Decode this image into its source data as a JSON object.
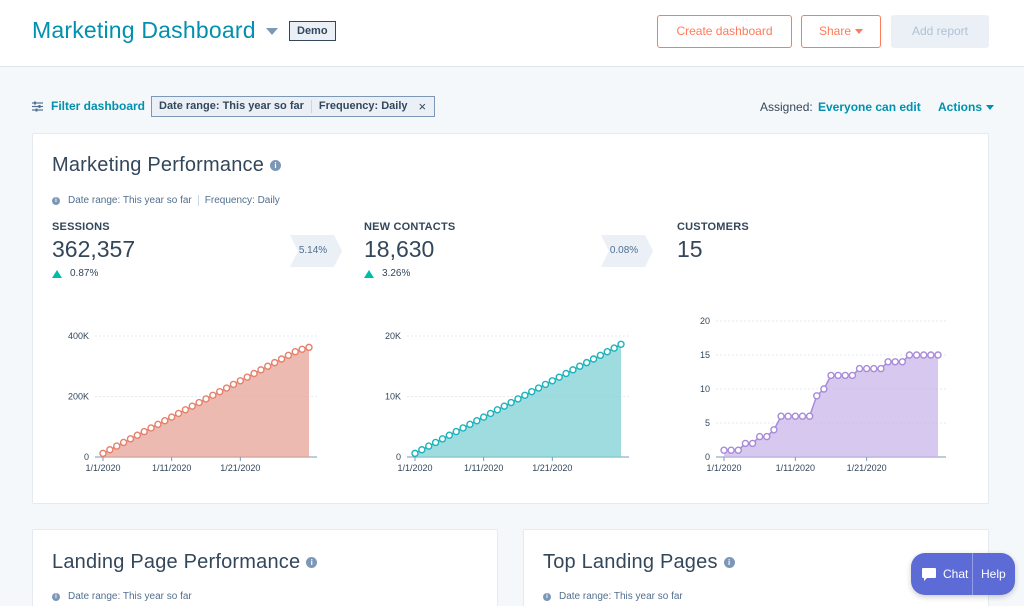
{
  "header": {
    "title": "Marketing Dashboard",
    "badge": "Demo",
    "create_label": "Create dashboard",
    "share_label": "Share",
    "add_report_label": "Add report"
  },
  "filterbar": {
    "filter_label": "Filter dashboard",
    "chip_date": "Date range: This year so far",
    "chip_frequency": "Frequency: Daily",
    "chip_close": "×",
    "assigned_label": "Assigned:",
    "assigned_value": "Everyone can edit",
    "actions_label": "Actions"
  },
  "performance": {
    "title": "Marketing Performance",
    "info": "i",
    "date_range": "Date range: This year so far",
    "frequency": "Frequency: Daily",
    "metrics": [
      {
        "label": "SESSIONS",
        "value": "362,357",
        "change": "0.87%"
      },
      {
        "label": "NEW CONTACTS",
        "value": "18,630",
        "change": "3.26%"
      },
      {
        "label": "CUSTOMERS",
        "value": "15"
      }
    ],
    "conversions": [
      "5.14%",
      "0.08%"
    ]
  },
  "landing_page": {
    "title": "Landing Page Performance",
    "date_range": "Date range: This year so far"
  },
  "top_landing": {
    "title": "Top Landing Pages",
    "date_range": "Date range: This year so far"
  },
  "chat": {
    "chat_label": "Chat",
    "help_label": "Help"
  },
  "chart_data": [
    {
      "type": "area",
      "title": "",
      "color": "#e5a396",
      "x_ticks": [
        "1/1/2020",
        "1/11/2020",
        "1/21/2020"
      ],
      "y_ticks": [
        "0",
        "200K",
        "400K"
      ],
      "ylim": [
        0,
        400000
      ],
      "x": [
        1,
        2,
        3,
        4,
        5,
        6,
        7,
        8,
        9,
        10,
        11,
        12,
        13,
        14,
        15,
        16,
        17,
        18,
        19,
        20,
        21,
        22,
        23,
        24,
        25,
        26,
        27,
        28,
        29,
        30,
        31
      ],
      "values": [
        12000,
        24000,
        36000,
        48000,
        60000,
        72000,
        84000,
        96000,
        108000,
        120000,
        132000,
        144000,
        156000,
        168000,
        180000,
        192000,
        204000,
        216000,
        228000,
        240000,
        252000,
        264000,
        276000,
        288000,
        300000,
        312000,
        324000,
        336000,
        348000,
        356000,
        362357
      ]
    },
    {
      "type": "area",
      "title": "",
      "color": "#7fd0d4",
      "x_ticks": [
        "1/1/2020",
        "1/11/2020",
        "1/21/2020"
      ],
      "y_ticks": [
        "0",
        "10K",
        "20K"
      ],
      "ylim": [
        0,
        20000
      ],
      "x": [
        1,
        2,
        3,
        4,
        5,
        6,
        7,
        8,
        9,
        10,
        11,
        12,
        13,
        14,
        15,
        16,
        17,
        18,
        19,
        20,
        21,
        22,
        23,
        24,
        25,
        26,
        27,
        28,
        29,
        30,
        31
      ],
      "values": [
        600,
        1200,
        1800,
        2400,
        3000,
        3600,
        4200,
        4800,
        5400,
        6000,
        6600,
        7200,
        7800,
        8400,
        9000,
        9600,
        10200,
        10800,
        11400,
        12000,
        12600,
        13200,
        13800,
        14400,
        15000,
        15600,
        16200,
        16800,
        17400,
        18000,
        18630
      ]
    },
    {
      "type": "area",
      "title": "",
      "color": "#c8b6ea",
      "x_ticks": [
        "1/1/2020",
        "1/11/2020",
        "1/21/2020"
      ],
      "y_ticks": [
        "0",
        "5",
        "10",
        "15",
        "20"
      ],
      "ylim": [
        0,
        20
      ],
      "x": [
        1,
        2,
        3,
        4,
        5,
        6,
        7,
        8,
        9,
        10,
        11,
        12,
        13,
        14,
        15,
        16,
        17,
        18,
        19,
        20,
        21,
        22,
        23,
        24,
        25,
        26,
        27,
        28,
        29,
        30,
        31
      ],
      "values": [
        1,
        1,
        1,
        2,
        2,
        3,
        3,
        4,
        6,
        6,
        6,
        6,
        6,
        9,
        10,
        12,
        12,
        12,
        12,
        13,
        13,
        13,
        13,
        14,
        14,
        14,
        15,
        15,
        15,
        15,
        15
      ]
    }
  ]
}
